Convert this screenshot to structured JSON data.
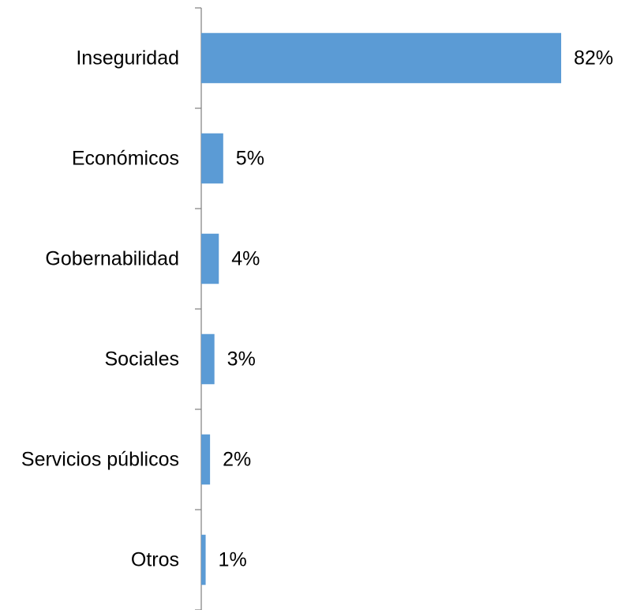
{
  "chart_data": {
    "type": "bar",
    "orientation": "horizontal",
    "categories": [
      "Inseguridad",
      "Económicos",
      "Gobernabilidad",
      "Sociales",
      "Servicios públicos",
      "Otros"
    ],
    "values": [
      82,
      5,
      4,
      3,
      2,
      1
    ],
    "value_labels": [
      "82%",
      "5%",
      "4%",
      "3%",
      "2%",
      "1%"
    ],
    "unit": "%",
    "title": "",
    "xlabel": "",
    "ylabel": "",
    "xlim": [
      0,
      85
    ],
    "grid": false,
    "legend": "none",
    "bar_color": "#5B9BD5",
    "axis_color": "#7F7F7F"
  }
}
